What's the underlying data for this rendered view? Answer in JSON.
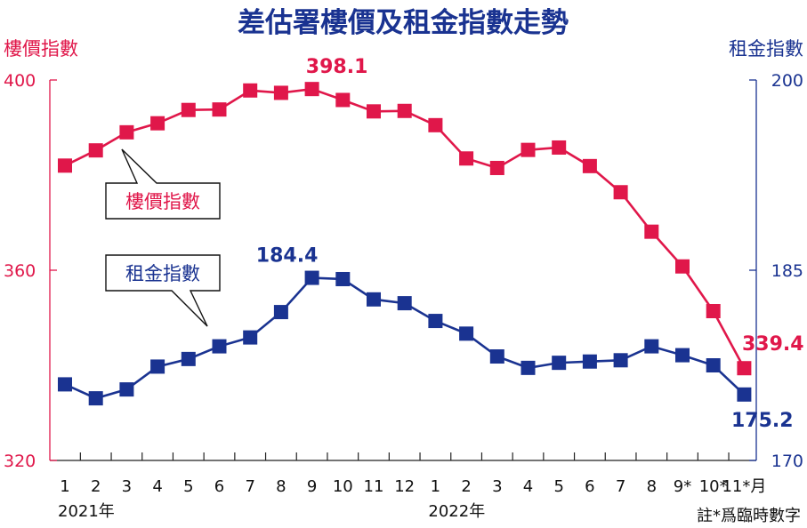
{
  "chart_data": {
    "type": "line",
    "title": "差估署樓價及租金指數走勢",
    "categories": [
      "1",
      "2",
      "3",
      "4",
      "5",
      "6",
      "7",
      "8",
      "9",
      "10",
      "11",
      "12",
      "1",
      "2",
      "3",
      "4",
      "5",
      "6",
      "7",
      "8",
      "9*",
      "10*",
      "11*"
    ],
    "x_unit": "月",
    "year_labels": [
      {
        "label": "2021年",
        "index": 0
      },
      {
        "label": "2022年",
        "index": 12
      }
    ],
    "note": "註*爲臨時數字",
    "y_left": {
      "label": "樓價指數",
      "ylim": [
        320,
        400
      ],
      "ticks": [
        "320",
        "360",
        "400"
      ],
      "color": "#e0174a"
    },
    "y_right": {
      "label": "租金指數",
      "ylim": [
        170,
        200
      ],
      "ticks": [
        "170",
        "185",
        "200"
      ],
      "color": "#1a3391"
    },
    "grid": false,
    "series": [
      {
        "name": "樓價指數",
        "axis": "left",
        "color": "#e0174a",
        "values": [
          382.0,
          385.2,
          389.0,
          390.9,
          393.7,
          393.8,
          397.8,
          397.3,
          398.1,
          395.8,
          393.4,
          393.5,
          390.5,
          383.5,
          381.5,
          385.3,
          385.8,
          381.9,
          376.4,
          368.1,
          360.8,
          351.4,
          339.4
        ],
        "labels": [
          {
            "index": 8,
            "text": "398.1"
          },
          {
            "index": 22,
            "text": "339.4"
          }
        ],
        "legend_label": "樓價指數"
      },
      {
        "name": "租金指數",
        "axis": "right",
        "color": "#1a3391",
        "values": [
          176.0,
          174.9,
          175.6,
          177.4,
          178.0,
          179.0,
          179.7,
          181.7,
          184.4,
          184.3,
          182.7,
          182.4,
          181.0,
          180.0,
          178.2,
          177.3,
          177.7,
          177.8,
          177.9,
          179.0,
          178.3,
          177.5,
          175.2
        ],
        "labels": [
          {
            "index": 8,
            "text": "184.4"
          },
          {
            "index": 22,
            "text": "175.2"
          }
        ],
        "legend_label": "租金指數"
      }
    ]
  }
}
